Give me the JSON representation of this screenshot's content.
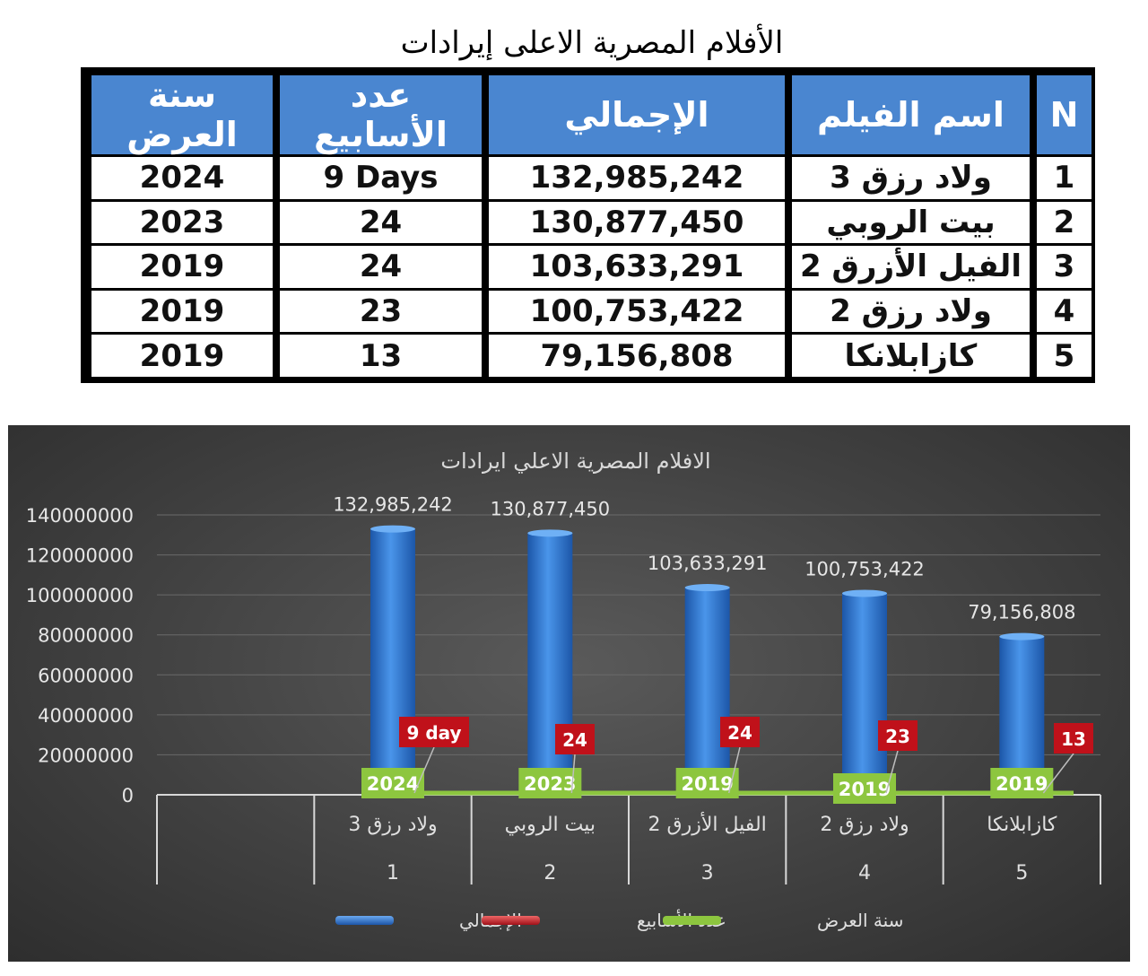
{
  "table": {
    "title": "الأفلام المصرية الاعلى إيرادات",
    "headers": [
      "N",
      "اسم الفيلم",
      "الإجمالي",
      "عدد الأسابيع",
      "سنة العرض"
    ],
    "rows": [
      {
        "n": "1",
        "name": "ولاد رزق 3",
        "total": "132,985,242",
        "weeks": "9 Days",
        "year": "2024"
      },
      {
        "n": "2",
        "name": "بيت الروبي",
        "total": "130,877,450",
        "weeks": "24",
        "year": "2023"
      },
      {
        "n": "3",
        "name": "الفيل الأزرق 2",
        "total": "103,633,291",
        "weeks": "24",
        "year": "2019"
      },
      {
        "n": "4",
        "name": "ولاد رزق 2",
        "total": "100,753,422",
        "weeks": "23",
        "year": "2019"
      },
      {
        "n": "5",
        "name": "كازابلانكا",
        "total": "79,156,808",
        "weeks": "13",
        "year": "2019"
      }
    ]
  },
  "chart_data": {
    "type": "bar",
    "title": "الافلام المصرية الاعلي ايرادات",
    "ylim": [
      0,
      140000000
    ],
    "yticks": [
      "0",
      "20000000",
      "40000000",
      "60000000",
      "80000000",
      "100000000",
      "120000000",
      "140000000"
    ],
    "categories": [
      {
        "label": "",
        "index": ""
      },
      {
        "label": "ولاد رزق 3",
        "index": "1"
      },
      {
        "label": "بيت الروبي",
        "index": "2"
      },
      {
        "label": "الفيل الأزرق 2",
        "index": "3"
      },
      {
        "label": "ولاد رزق 2",
        "index": "4"
      },
      {
        "label": "كازابلانكا",
        "index": "5"
      }
    ],
    "series": [
      {
        "name": "الإجمالي",
        "color": "#3b7dd8",
        "values": [
          null,
          132985242,
          130877450,
          103633291,
          100753422,
          79156808
        ],
        "labels": [
          "",
          "132,985,242",
          "130,877,450",
          "103,633,291",
          "100,753,422",
          "79,156,808"
        ]
      },
      {
        "name": "عدد الأسابيع",
        "color": "#c0111a",
        "labels": [
          "",
          "9 day",
          "24",
          "24",
          "23",
          "13"
        ]
      },
      {
        "name": "سنة العرض",
        "color": "#8dc63f",
        "labels": [
          "",
          "2024",
          "2023",
          "2019",
          "2019",
          "2019"
        ]
      }
    ],
    "grid": true,
    "legend": "bottom"
  }
}
